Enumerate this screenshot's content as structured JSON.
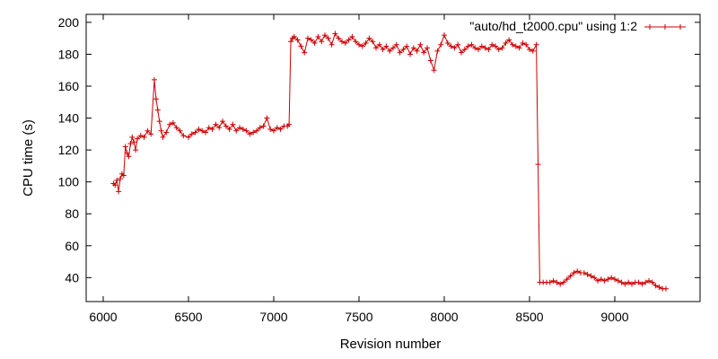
{
  "chart_data": {
    "type": "line",
    "xlabel": "Revision number",
    "ylabel": "CPU time (s)",
    "xlim": [
      5900,
      9500
    ],
    "ylim": [
      25,
      205
    ],
    "x_ticks": [
      6000,
      6500,
      7000,
      7500,
      8000,
      8500,
      9000
    ],
    "y_ticks": [
      40,
      60,
      80,
      100,
      120,
      140,
      160,
      180,
      200
    ],
    "grid": false,
    "legend_position": "top-right",
    "colors": {
      "series": "#cc0000",
      "axes": "#000000",
      "background": "#ffffff"
    },
    "series": [
      {
        "name": "\"auto/hd_t2000.cpu\" using 1:2",
        "marker": "plus",
        "x": [
          6060,
          6070,
          6080,
          6090,
          6100,
          6110,
          6120,
          6130,
          6140,
          6150,
          6160,
          6170,
          6180,
          6190,
          6200,
          6220,
          6240,
          6260,
          6280,
          6300,
          6310,
          6320,
          6330,
          6340,
          6350,
          6370,
          6390,
          6410,
          6430,
          6450,
          6470,
          6500,
          6520,
          6540,
          6560,
          6580,
          6600,
          6620,
          6640,
          6660,
          6680,
          6700,
          6720,
          6740,
          6760,
          6780,
          6800,
          6820,
          6840,
          6860,
          6880,
          6900,
          6920,
          6940,
          6960,
          6980,
          7000,
          7020,
          7040,
          7060,
          7080,
          7090,
          7100,
          7110,
          7120,
          7140,
          7160,
          7180,
          7200,
          7220,
          7240,
          7260,
          7280,
          7300,
          7320,
          7340,
          7360,
          7380,
          7400,
          7420,
          7440,
          7460,
          7480,
          7500,
          7520,
          7540,
          7560,
          7580,
          7600,
          7620,
          7640,
          7660,
          7680,
          7700,
          7720,
          7740,
          7760,
          7780,
          7800,
          7820,
          7840,
          7860,
          7880,
          7900,
          7920,
          7940,
          7960,
          7980,
          8000,
          8020,
          8040,
          8060,
          8080,
          8100,
          8120,
          8140,
          8160,
          8180,
          8200,
          8220,
          8240,
          8260,
          8280,
          8300,
          8320,
          8340,
          8360,
          8380,
          8400,
          8420,
          8440,
          8460,
          8480,
          8500,
          8520,
          8540,
          8550,
          8560,
          8580,
          8600,
          8620,
          8640,
          8660,
          8680,
          8700,
          8720,
          8740,
          8760,
          8780,
          8800,
          8820,
          8840,
          8860,
          8880,
          8900,
          8920,
          8940,
          8960,
          8980,
          9000,
          9020,
          9040,
          9060,
          9080,
          9100,
          9120,
          9140,
          9160,
          9180,
          9200,
          9220,
          9240,
          9260,
          9280,
          9300
        ],
        "y": [
          99,
          98,
          101,
          94,
          102,
          105,
          104,
          122,
          118,
          116,
          124,
          128,
          125,
          120,
          127,
          129,
          128,
          132,
          130,
          164,
          152,
          145,
          138,
          132,
          128,
          131,
          136,
          137,
          134,
          132,
          129,
          128,
          130,
          131,
          133,
          132,
          131,
          134,
          133,
          136,
          134,
          138,
          135,
          133,
          136,
          132,
          134,
          133,
          132,
          130,
          131,
          132,
          134,
          135,
          140,
          133,
          132,
          134,
          133,
          135,
          135,
          136,
          188,
          190,
          191,
          189,
          185,
          181,
          190,
          189,
          187,
          191,
          188,
          192,
          190,
          186,
          193,
          190,
          188,
          187,
          189,
          191,
          188,
          186,
          185,
          187,
          190,
          188,
          184,
          186,
          183,
          185,
          182,
          184,
          186,
          181,
          183,
          185,
          180,
          184,
          182,
          186,
          181,
          184,
          176,
          170,
          182,
          186,
          192,
          187,
          185,
          184,
          186,
          181,
          183,
          185,
          186,
          184,
          183,
          185,
          184,
          183,
          186,
          185,
          183,
          184,
          187,
          189,
          186,
          185,
          184,
          187,
          186,
          183,
          182,
          186,
          111,
          37,
          37,
          37,
          37,
          38,
          37,
          36,
          37,
          39,
          41,
          43,
          44,
          43,
          43,
          42,
          41,
          40,
          38,
          39,
          38,
          39,
          40,
          39,
          38,
          37,
          36,
          37,
          36,
          37,
          37,
          36,
          37,
          38,
          37,
          35,
          34,
          33,
          33
        ]
      }
    ]
  }
}
